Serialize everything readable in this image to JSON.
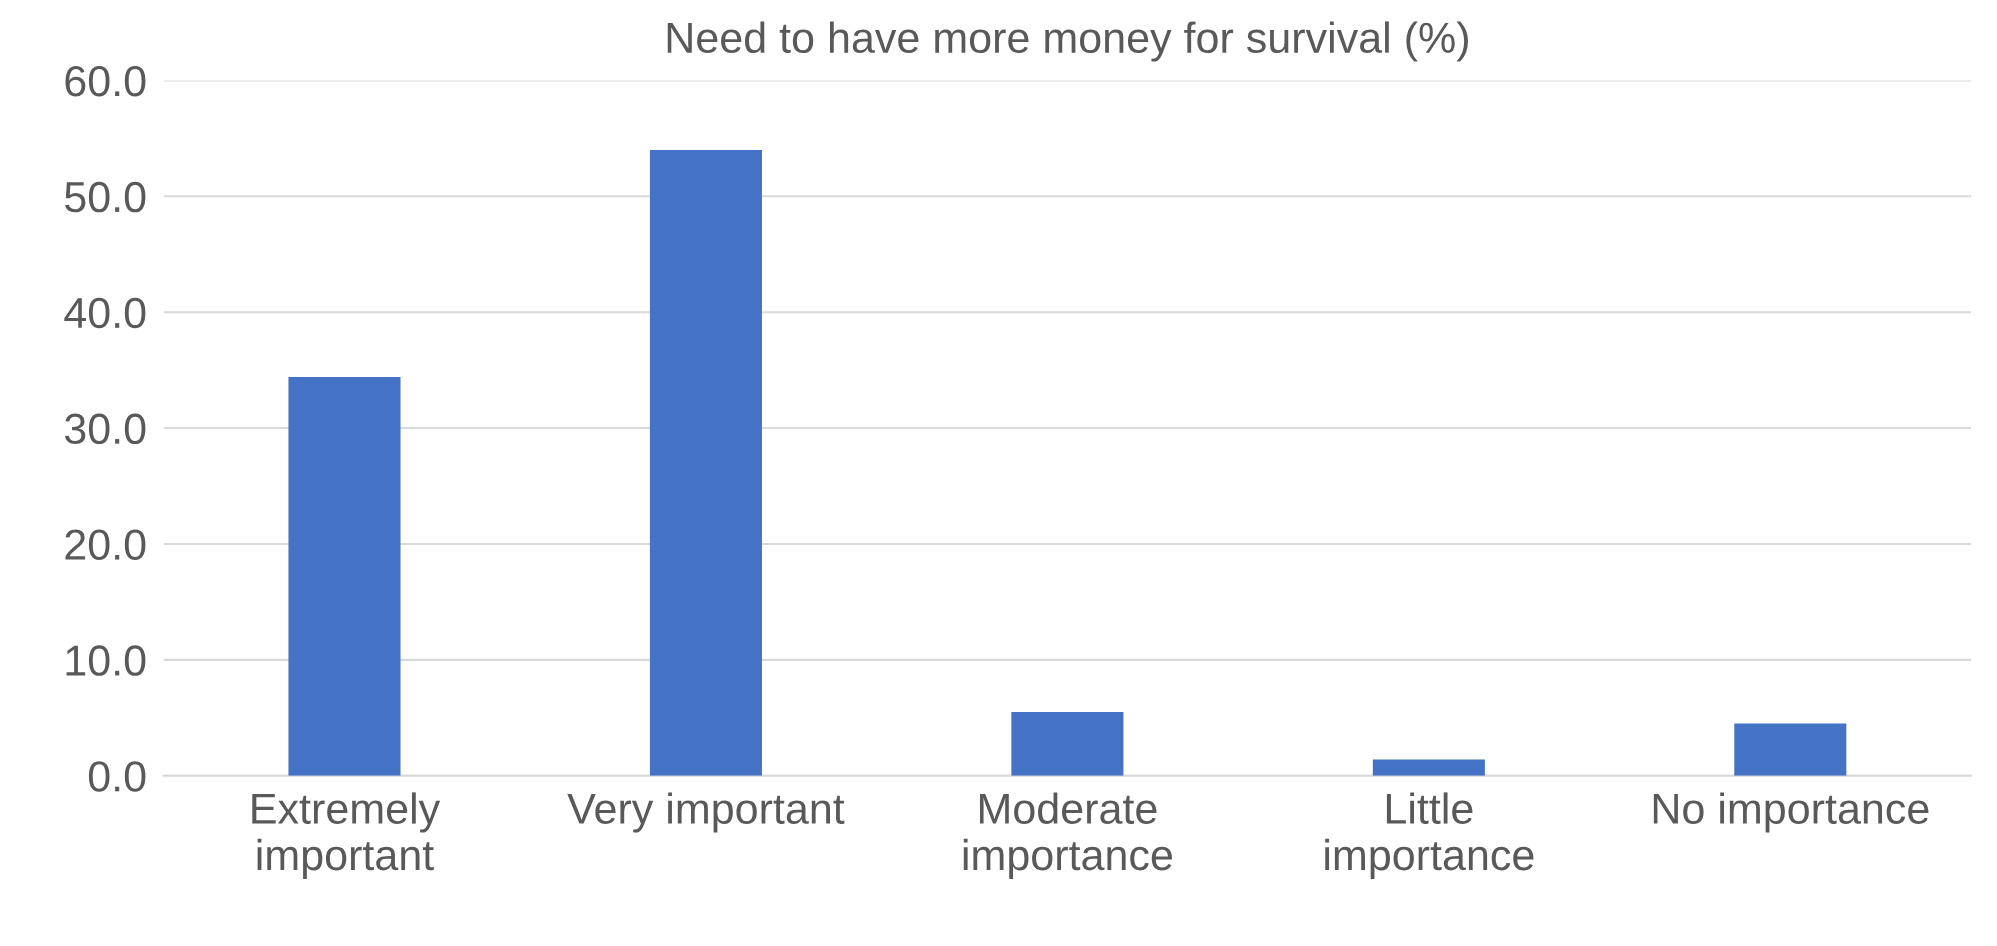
{
  "chart_data": {
    "type": "bar",
    "title": "Need to have more money for survival (%)",
    "categories": [
      "Extremely\nimportant",
      "Very important",
      "Moderate\nimportance",
      "Little\nimportance",
      "No importance"
    ],
    "values": [
      34.4,
      54.0,
      5.5,
      1.4,
      4.5
    ],
    "color": "#4472c4",
    "ylim": [
      0,
      60
    ],
    "yticks": [
      {
        "value": 0,
        "label": "0.0"
      },
      {
        "value": 10,
        "label": "10.0"
      },
      {
        "value": 20,
        "label": "20.0"
      },
      {
        "value": 30,
        "label": "30.0"
      },
      {
        "value": 40,
        "label": "40.0"
      },
      {
        "value": 50,
        "label": "50.0"
      },
      {
        "value": 60,
        "label": "60.0"
      }
    ],
    "grid": "y",
    "legend": false
  }
}
